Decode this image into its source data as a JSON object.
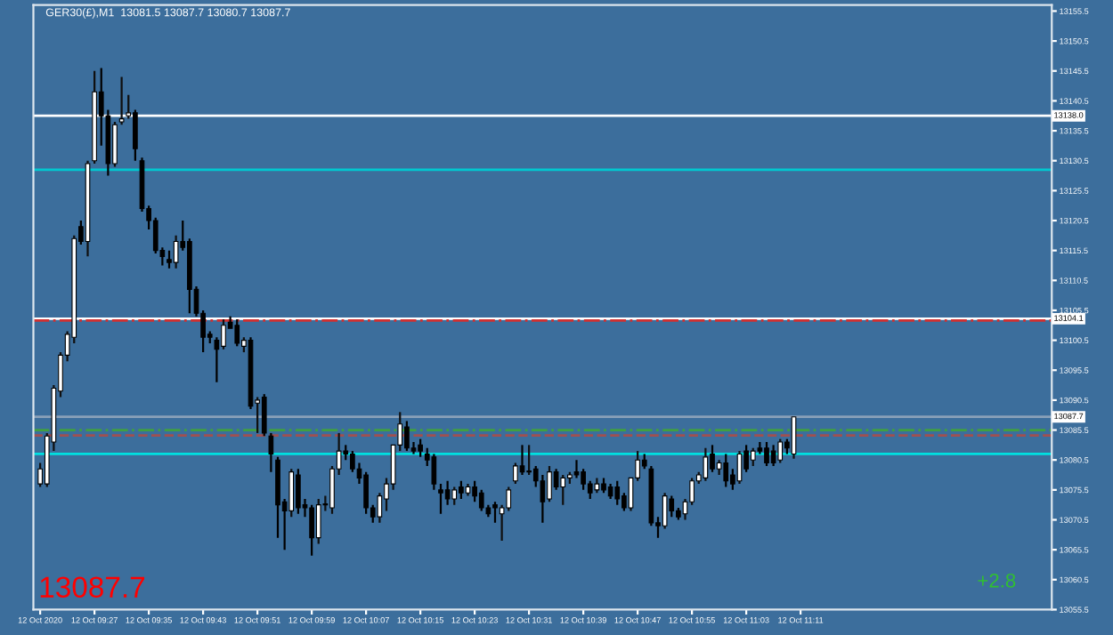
{
  "chart_data": {
    "type": "candlestick",
    "title": "GER30(£),M1  13081.5 13087.7 13080.7 13087.7",
    "x": [
      "2020-10-12T09:19",
      "2020-10-12T09:20",
      "2020-10-12T09:21",
      "2020-10-12T09:22",
      "2020-10-12T09:23",
      "2020-10-12T09:24",
      "2020-10-12T09:25",
      "2020-10-12T09:26",
      "2020-10-12T09:27",
      "2020-10-12T09:28",
      "2020-10-12T09:29",
      "2020-10-12T09:30",
      "2020-10-12T09:31",
      "2020-10-12T09:32",
      "2020-10-12T09:33",
      "2020-10-12T09:34",
      "2020-10-12T09:35",
      "2020-10-12T09:36",
      "2020-10-12T09:37",
      "2020-10-12T09:38",
      "2020-10-12T09:39",
      "2020-10-12T09:40",
      "2020-10-12T09:41",
      "2020-10-12T09:42",
      "2020-10-12T09:43",
      "2020-10-12T09:44",
      "2020-10-12T09:45",
      "2020-10-12T09:46",
      "2020-10-12T09:47",
      "2020-10-12T09:48",
      "2020-10-12T09:49",
      "2020-10-12T09:50",
      "2020-10-12T09:51",
      "2020-10-12T09:52",
      "2020-10-12T09:53",
      "2020-10-12T09:54",
      "2020-10-12T09:55",
      "2020-10-12T09:56",
      "2020-10-12T09:57",
      "2020-10-12T09:58",
      "2020-10-12T09:59",
      "2020-10-12T10:00",
      "2020-10-12T10:01",
      "2020-10-12T10:02",
      "2020-10-12T10:03",
      "2020-10-12T10:04",
      "2020-10-12T10:05",
      "2020-10-12T10:06",
      "2020-10-12T10:07",
      "2020-10-12T10:08",
      "2020-10-12T10:09",
      "2020-10-12T10:10",
      "2020-10-12T10:11",
      "2020-10-12T10:12",
      "2020-10-12T10:13",
      "2020-10-12T10:14",
      "2020-10-12T10:15",
      "2020-10-12T10:16",
      "2020-10-12T10:17",
      "2020-10-12T10:18",
      "2020-10-12T10:19",
      "2020-10-12T10:20",
      "2020-10-12T10:21",
      "2020-10-12T10:22",
      "2020-10-12T10:23",
      "2020-10-12T10:24",
      "2020-10-12T10:25",
      "2020-10-12T10:26",
      "2020-10-12T10:27",
      "2020-10-12T10:28",
      "2020-10-12T10:29",
      "2020-10-12T10:30",
      "2020-10-12T10:31",
      "2020-10-12T10:32",
      "2020-10-12T10:33",
      "2020-10-12T10:34",
      "2020-10-12T10:35",
      "2020-10-12T10:36",
      "2020-10-12T10:37",
      "2020-10-12T10:38",
      "2020-10-12T10:39",
      "2020-10-12T10:40",
      "2020-10-12T10:41",
      "2020-10-12T10:42",
      "2020-10-12T10:43",
      "2020-10-12T10:44",
      "2020-10-12T10:45",
      "2020-10-12T10:46",
      "2020-10-12T10:47",
      "2020-10-12T10:48",
      "2020-10-12T10:49",
      "2020-10-12T10:50",
      "2020-10-12T10:51",
      "2020-10-12T10:52",
      "2020-10-12T10:53",
      "2020-10-12T10:54",
      "2020-10-12T10:55",
      "2020-10-12T10:56",
      "2020-10-12T10:57",
      "2020-10-12T10:58",
      "2020-10-12T10:59",
      "2020-10-12T11:00",
      "2020-10-12T11:01",
      "2020-10-12T11:02",
      "2020-10-12T11:03",
      "2020-10-12T11:04",
      "2020-10-12T11:05",
      "2020-10-12T11:06",
      "2020-10-12T11:07",
      "2020-10-12T11:08",
      "2020-10-12T11:09",
      "2020-10-12T11:10"
    ],
    "ohlc": [
      [
        13076.5,
        13080,
        13076,
        13079
      ],
      [
        13076.5,
        13085,
        13076,
        13084.5
      ],
      [
        13083.5,
        13093,
        13082,
        13092.5
      ],
      [
        13092,
        13098.5,
        13091,
        13098
      ],
      [
        13098,
        13102,
        13097,
        13101.5
      ],
      [
        13101,
        13118,
        13100,
        13117.5
      ],
      [
        13119.5,
        13120.5,
        13116.5,
        13117
      ],
      [
        13117,
        13130.5,
        13114.5,
        13130
      ],
      [
        13130.5,
        13145.5,
        13130,
        13142
      ],
      [
        13142,
        13146,
        13133,
        13138
      ],
      [
        13138,
        13139,
        13128,
        13130
      ],
      [
        13130,
        13137,
        13129.5,
        13136.5
      ],
      [
        13137,
        13144.5,
        13136.5,
        13137.5
      ],
      [
        13138,
        13141.5,
        13137.5,
        13138.5
      ],
      [
        13138.5,
        13139,
        13130.5,
        13132.5
      ],
      [
        13130.5,
        13131,
        13122,
        13122.5
      ],
      [
        13122.5,
        13123,
        13119,
        13120.5
      ],
      [
        13120.5,
        13121,
        13115,
        13115.5
      ],
      [
        13115.5,
        13116,
        13113,
        13114.5
      ],
      [
        13114,
        13115.5,
        13112.5,
        13113.5
      ],
      [
        13113.5,
        13118,
        13112.5,
        13117
      ],
      [
        13117,
        13120.5,
        13115.5,
        13116
      ],
      [
        13117,
        13117.5,
        13105,
        13109
      ],
      [
        13109,
        13109.5,
        13104.5,
        13105
      ],
      [
        13105,
        13105.5,
        13098.5,
        13101
      ],
      [
        13101.5,
        13102,
        13100,
        13101
      ],
      [
        13100.5,
        13101,
        13093.5,
        13099
      ],
      [
        13099.5,
        13104,
        13099,
        13103
      ],
      [
        13103.5,
        13104.5,
        13102.5,
        13102.5
      ],
      [
        13103,
        13104,
        13099.5,
        13100
      ],
      [
        13099.5,
        13101,
        13098.5,
        13100.5
      ],
      [
        13100.5,
        13101,
        13089,
        13089.5
      ],
      [
        13090,
        13091,
        13085,
        13090.5
      ],
      [
        13091,
        13091.5,
        13084.5,
        13085
      ],
      [
        13084.5,
        13085,
        13078.5,
        13081.5
      ],
      [
        13080.5,
        13081,
        13067.5,
        13073
      ],
      [
        13073.5,
        13074,
        13065.5,
        13072
      ],
      [
        13072,
        13079,
        13071,
        13078.5
      ],
      [
        13078,
        13079,
        13071.5,
        13072.5
      ],
      [
        13073,
        13074,
        13071,
        13072.5
      ],
      [
        13072.5,
        13073,
        13064.5,
        13067.5
      ],
      [
        13067.5,
        13074,
        13066.5,
        13073
      ],
      [
        13073,
        13074.5,
        13072,
        13073
      ],
      [
        13072.5,
        13079.5,
        13071.5,
        13079
      ],
      [
        13079,
        13085,
        13078,
        13082
      ],
      [
        13082,
        13083,
        13080.5,
        13081.5
      ],
      [
        13081.5,
        13082,
        13078.5,
        13079
      ],
      [
        13079,
        13080,
        13076.5,
        13077.5
      ],
      [
        13078,
        13078.5,
        13071.5,
        13072.5
      ],
      [
        13072.5,
        13073,
        13070,
        13071
      ],
      [
        13071,
        13075,
        13070,
        13074.5
      ],
      [
        13074,
        13077.5,
        13072,
        13076.5
      ],
      [
        13076.5,
        13083,
        13075.5,
        13083
      ],
      [
        13083,
        13088.5,
        13082,
        13086.5
      ],
      [
        13086,
        13087,
        13082,
        13082.5
      ],
      [
        13082.5,
        13083.5,
        13081.5,
        13082
      ],
      [
        13083,
        13084,
        13081,
        13082
      ],
      [
        13081.5,
        13082.5,
        13079.5,
        13080.5
      ],
      [
        13081,
        13081.5,
        13075.5,
        13076.5
      ],
      [
        13075.5,
        13076.5,
        13071.5,
        13075
      ],
      [
        13075.5,
        13077,
        13073,
        13074
      ],
      [
        13074,
        13076,
        13073,
        13075.5
      ],
      [
        13076,
        13077,
        13074,
        13075
      ],
      [
        13075,
        13076.5,
        13074.5,
        13076
      ],
      [
        13076,
        13077,
        13073.5,
        13074.5
      ],
      [
        13075,
        13075.5,
        13072,
        13072.5
      ],
      [
        13072.5,
        13073,
        13071,
        13071.5
      ],
      [
        13073,
        13073.5,
        13070,
        13072.5
      ],
      [
        13071.5,
        13073,
        13067,
        13072.5
      ],
      [
        13072.5,
        13076,
        13072,
        13075.5
      ],
      [
        13077,
        13080,
        13076.5,
        13079.5
      ],
      [
        13079.5,
        13083,
        13078,
        13078.5
      ],
      [
        13078.5,
        13083,
        13078,
        13078.5
      ],
      [
        13079,
        13079.5,
        13076,
        13077
      ],
      [
        13077,
        13078,
        13070,
        13073.5
      ],
      [
        13074,
        13079.5,
        13073.5,
        13078.5
      ],
      [
        13078.5,
        13079,
        13075.5,
        13076
      ],
      [
        13076,
        13078,
        13073,
        13077.5
      ],
      [
        13077.5,
        13078.5,
        13076.5,
        13078
      ],
      [
        13078.5,
        13080.5,
        13077.5,
        13078
      ],
      [
        13078.5,
        13079,
        13075.5,
        13076.5
      ],
      [
        13076.5,
        13077,
        13074,
        13075
      ],
      [
        13075.5,
        13077.5,
        13075,
        13076.5
      ],
      [
        13076.5,
        13077.5,
        13075,
        13075.5
      ],
      [
        13076,
        13076.5,
        13074,
        13074.5
      ],
      [
        13076,
        13077,
        13073,
        13074
      ],
      [
        13074.5,
        13075,
        13072,
        13072.5
      ],
      [
        13072.5,
        13077.5,
        13072,
        13077.5
      ],
      [
        13077.5,
        13082,
        13077,
        13080.5
      ],
      [
        13080.5,
        13081.5,
        13079,
        13079.5
      ],
      [
        13079,
        13079.5,
        13069.5,
        13070
      ],
      [
        13070,
        13071,
        13067.5,
        13069.5
      ],
      [
        13069.5,
        13075,
        13069,
        13074.5
      ],
      [
        13074,
        13074.5,
        13071,
        13072
      ],
      [
        13072,
        13072.5,
        13070.5,
        13071
      ],
      [
        13071.5,
        13074,
        13070.5,
        13073.5
      ],
      [
        13073.5,
        13077.5,
        13073,
        13077
      ],
      [
        13077,
        13078.5,
        13076.5,
        13078
      ],
      [
        13077.5,
        13082.5,
        13077,
        13081
      ],
      [
        13081.5,
        13083,
        13078.5,
        13079
      ],
      [
        13079,
        13080.5,
        13078,
        13080
      ],
      [
        13080,
        13081.5,
        13076,
        13077
      ],
      [
        13078,
        13079,
        13075.5,
        13076.5
      ],
      [
        13077,
        13082,
        13076.5,
        13081.5
      ],
      [
        13082,
        13083,
        13078.5,
        13079
      ],
      [
        13080.5,
        13082.5,
        13079.5,
        13082
      ],
      [
        13082.5,
        13083.5,
        13081.5,
        13082
      ],
      [
        13082.5,
        13083.5,
        13079.5,
        13080
      ],
      [
        13082,
        13083,
        13079.5,
        13080
      ],
      [
        13080.5,
        13084,
        13080,
        13083.5
      ],
      [
        13083.5,
        13084,
        13081.5,
        13082.5
      ],
      [
        13081.5,
        13087.7,
        13080.7,
        13087.7
      ]
    ],
    "xlim": [
      "2020-10-12T09:18",
      "2020-10-12T11:48"
    ],
    "xticks": [
      {
        "value": "2020-10-12T09:19",
        "label": "12 Oct 2020"
      },
      {
        "value": "2020-10-12T09:27",
        "label": "12 Oct 09:27"
      },
      {
        "value": "2020-10-12T09:35",
        "label": "12 Oct 09:35"
      },
      {
        "value": "2020-10-12T09:43",
        "label": "12 Oct 09:43"
      },
      {
        "value": "2020-10-12T09:51",
        "label": "12 Oct 09:51"
      },
      {
        "value": "2020-10-12T09:59",
        "label": "12 Oct 09:59"
      },
      {
        "value": "2020-10-12T10:07",
        "label": "12 Oct 10:07"
      },
      {
        "value": "2020-10-12T10:15",
        "label": "12 Oct 10:15"
      },
      {
        "value": "2020-10-12T10:23",
        "label": "12 Oct 10:23"
      },
      {
        "value": "2020-10-12T10:31",
        "label": "12 Oct 10:31"
      },
      {
        "value": "2020-10-12T10:39",
        "label": "12 Oct 10:39"
      },
      {
        "value": "2020-10-12T10:47",
        "label": "12 Oct 10:47"
      },
      {
        "value": "2020-10-12T10:55",
        "label": "12 Oct 10:55"
      },
      {
        "value": "2020-10-12T11:03",
        "label": "12 Oct 11:03"
      },
      {
        "value": "2020-10-12T11:11",
        "label": "12 Oct 11:11"
      }
    ],
    "ylim": [
      13055.5,
      13156.5
    ],
    "yticks": [
      {
        "value": 13055.5,
        "label": "13055.5"
      },
      {
        "value": 13060.5,
        "label": "13060.5"
      },
      {
        "value": 13065.5,
        "label": "13065.5"
      },
      {
        "value": 13070.5,
        "label": "13070.5"
      },
      {
        "value": 13075.5,
        "label": "13075.5"
      },
      {
        "value": 13080.5,
        "label": "13080.5"
      },
      {
        "value": 13085.5,
        "label": "13085.5"
      },
      {
        "value": 13090.5,
        "label": "13090.5"
      },
      {
        "value": 13095.5,
        "label": "13095.5"
      },
      {
        "value": 13100.5,
        "label": "13100.5"
      },
      {
        "value": 13105.5,
        "label": "13105.5"
      },
      {
        "value": 13110.5,
        "label": "13110.5"
      },
      {
        "value": 13115.5,
        "label": "13115.5"
      },
      {
        "value": 13120.5,
        "label": "13120.5"
      },
      {
        "value": 13125.5,
        "label": "13125.5"
      },
      {
        "value": 13130.5,
        "label": "13130.5"
      },
      {
        "value": 13135.5,
        "label": "13135.5"
      },
      {
        "value": 13140.5,
        "label": "13140.5"
      },
      {
        "value": 13145.5,
        "label": "13145.5"
      },
      {
        "value": 13150.5,
        "label": "13150.5"
      },
      {
        "value": 13155.5,
        "label": "13155.5"
      }
    ],
    "ref_lines": [
      {
        "axis": "y",
        "value": 13138.0,
        "label": "13138.0",
        "color": "#ffffff",
        "line_style": "solid"
      },
      {
        "axis": "y",
        "value": 13129,
        "color": "#00c8d0",
        "line_style": "solid"
      },
      {
        "axis": "y",
        "value": 13104.1,
        "label": "13104.1",
        "color": "#ffffff",
        "line_style": "solid"
      },
      {
        "axis": "y",
        "value": 13103.8,
        "color": "#d03030",
        "line_style": "dashdot"
      },
      {
        "axis": "y",
        "value": 13087.7,
        "label": "13087.7",
        "color": "#8aa0b8",
        "line_style": "solid"
      },
      {
        "axis": "y",
        "value": 13085.5,
        "color": "#40a040",
        "line_style": "dashdot"
      },
      {
        "axis": "y",
        "value": 13084.6,
        "color": "#a05050",
        "line_style": "dashed"
      },
      {
        "axis": "y",
        "value": 13081.5,
        "color": "#00e0e0",
        "line_style": "solid"
      }
    ],
    "annotations": [
      "13087.7",
      "+2.8"
    ],
    "grid": false
  }
}
